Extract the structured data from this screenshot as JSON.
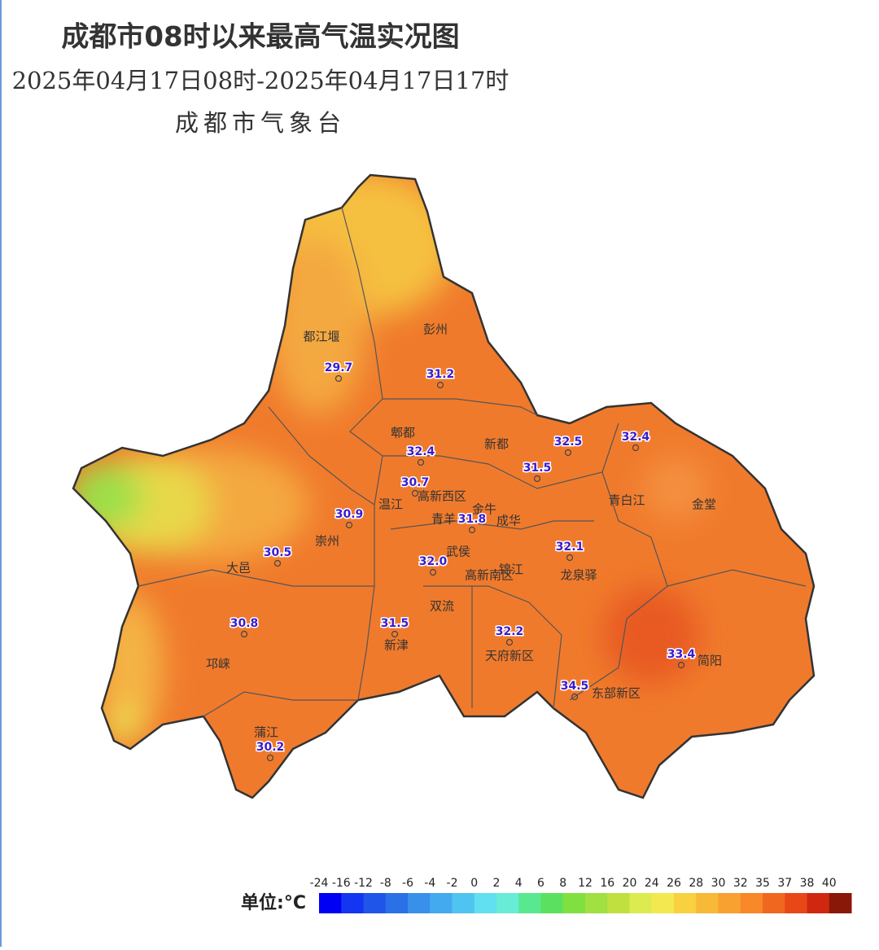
{
  "header": {
    "title": "成都市08时以来最高气温实况图",
    "subtitle": "2025年04月17日08时-2025年04月17日17时",
    "source": "成都市气象台"
  },
  "districts": [
    {
      "name": "都江堰"
    },
    {
      "name": "彭州"
    },
    {
      "name": "郫都"
    },
    {
      "name": "新都"
    },
    {
      "name": "温江"
    },
    {
      "name": "高新西区"
    },
    {
      "name": "金牛"
    },
    {
      "name": "青羊"
    },
    {
      "name": "成华"
    },
    {
      "name": "青白江"
    },
    {
      "name": "金堂"
    },
    {
      "name": "崇州"
    },
    {
      "name": "大邑"
    },
    {
      "name": "武侯"
    },
    {
      "name": "锦江"
    },
    {
      "name": "高新南区"
    },
    {
      "name": "龙泉驿"
    },
    {
      "name": "双流"
    },
    {
      "name": "新津"
    },
    {
      "name": "天府新区"
    },
    {
      "name": "邛崃"
    },
    {
      "name": "简阳"
    },
    {
      "name": "东部新区"
    },
    {
      "name": "蒲江"
    }
  ],
  "stations": [
    {
      "value": "29.7"
    },
    {
      "value": "31.2"
    },
    {
      "value": "32.4"
    },
    {
      "value": "30.7"
    },
    {
      "value": "32.5"
    },
    {
      "value": "32.4"
    },
    {
      "value": "31.5"
    },
    {
      "value": "31.8"
    },
    {
      "value": "30.9"
    },
    {
      "value": "30.5"
    },
    {
      "value": "32.0"
    },
    {
      "value": "32.1"
    },
    {
      "value": "30.8"
    },
    {
      "value": "31.5"
    },
    {
      "value": "32.2"
    },
    {
      "value": "33.4"
    },
    {
      "value": "34.5"
    },
    {
      "value": "30.2"
    }
  ],
  "legend": {
    "unit": "单位:°C",
    "ticks": [
      -24,
      -16,
      -12,
      -8,
      -6,
      -4,
      -2,
      0,
      2,
      4,
      6,
      8,
      12,
      16,
      20,
      24,
      26,
      28,
      30,
      32,
      35,
      37,
      38,
      40
    ],
    "colors": [
      "#0000f5",
      "#1436f0",
      "#2055ea",
      "#2a70e6",
      "#3890ea",
      "#44aaf0",
      "#50c4f0",
      "#60e0f0",
      "#68ecd8",
      "#58e890",
      "#5ce060",
      "#80e040",
      "#a0e040",
      "#c0e040",
      "#dcec50",
      "#f4e850",
      "#f8d040",
      "#f8b838",
      "#f8a030",
      "#f88828",
      "#f06820",
      "#e84818",
      "#d02810",
      "#8a1808"
    ]
  }
}
